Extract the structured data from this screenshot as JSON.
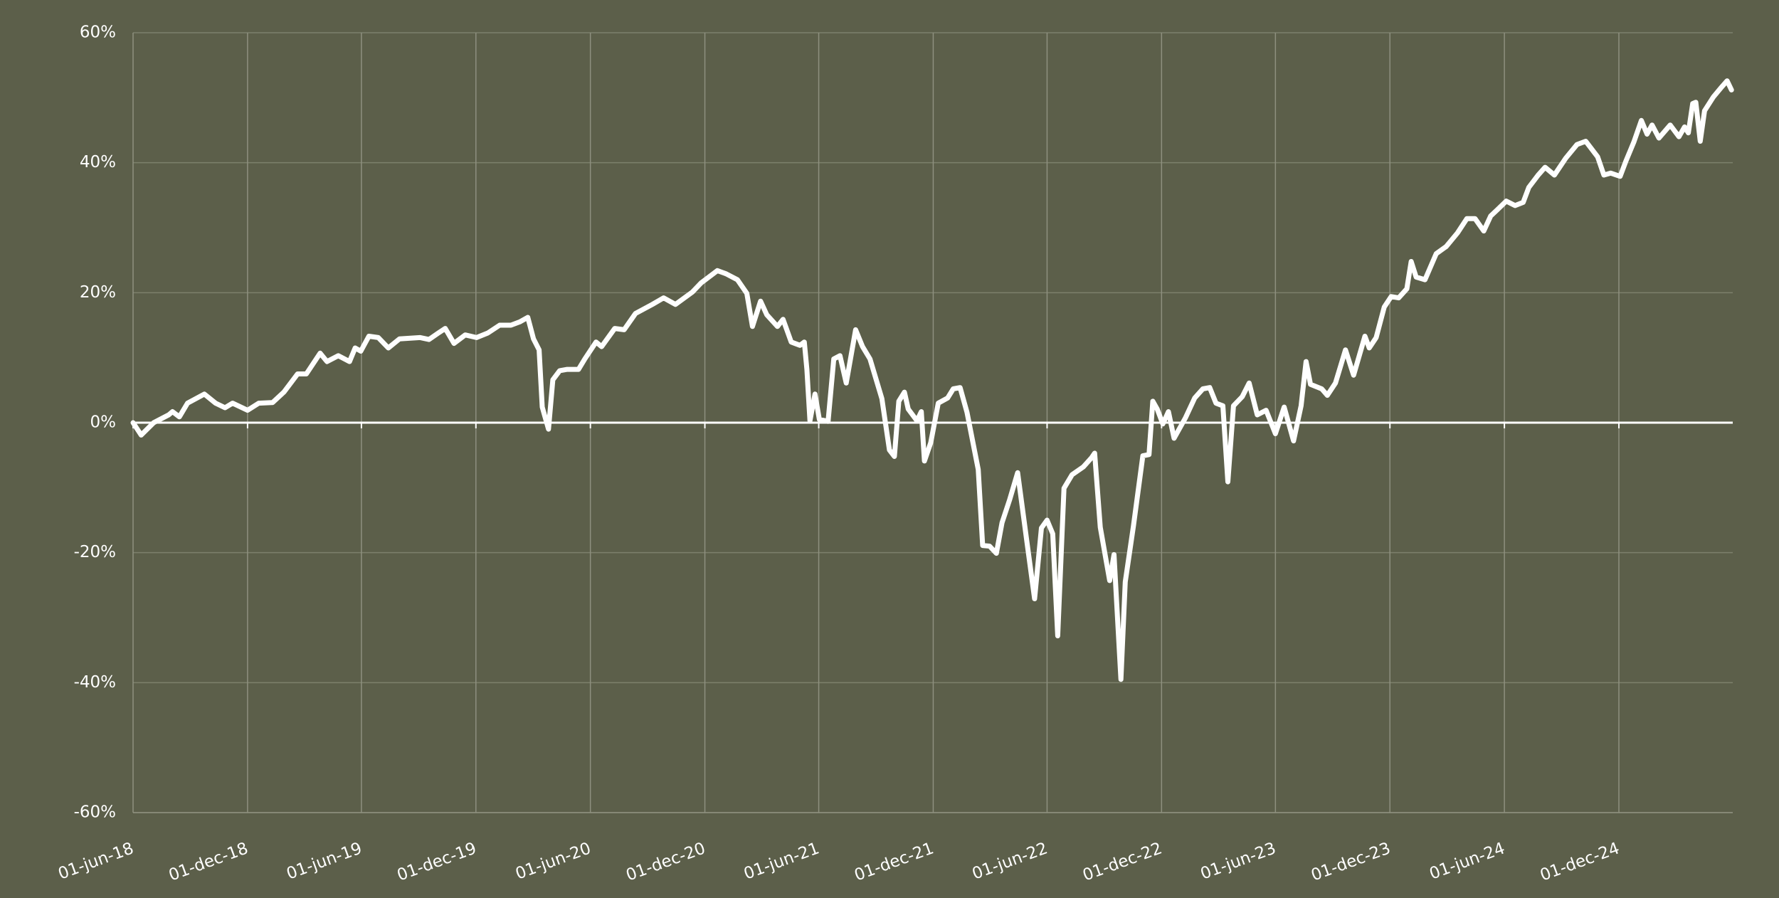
{
  "chart_data": {
    "type": "line",
    "color": "#ffffff",
    "grid": true,
    "x": [
      "2018-06-01",
      "2018-06-14",
      "2018-07-04",
      "2018-07-28",
      "2018-08-03",
      "2018-08-14",
      "2018-08-27",
      "2018-09-23",
      "2018-10-11",
      "2018-10-26",
      "2018-11-07",
      "2018-12-01",
      "2018-12-19",
      "2019-01-10",
      "2019-01-28",
      "2019-02-19",
      "2019-03-05",
      "2019-03-27",
      "2019-04-07",
      "2019-04-25",
      "2019-05-13",
      "2019-05-22",
      "2019-05-31",
      "2019-06-13",
      "2019-06-28",
      "2019-07-14",
      "2019-08-01",
      "2019-09-03",
      "2019-09-17",
      "2019-10-02",
      "2019-10-13",
      "2019-10-27",
      "2019-11-14",
      "2019-12-02",
      "2019-12-20",
      "2020-01-08",
      "2020-01-26",
      "2020-02-09",
      "2020-02-22",
      "2020-03-02",
      "2020-03-11",
      "2020-03-16",
      "2020-03-26",
      "2020-04-02",
      "2020-04-13",
      "2020-04-25",
      "2020-05-13",
      "2020-05-23",
      "2020-06-10",
      "2020-06-19",
      "2020-07-10",
      "2020-07-25",
      "2020-08-12",
      "2020-09-08",
      "2020-09-26",
      "2020-10-15",
      "2020-11-11",
      "2020-11-25",
      "2020-12-21",
      "2021-01-04",
      "2021-01-22",
      "2021-02-06",
      "2021-02-15",
      "2021-02-28",
      "2021-03-10",
      "2021-03-27",
      "2021-04-05",
      "2021-04-18",
      "2021-05-02",
      "2021-05-09",
      "2021-05-13",
      "2021-05-18",
      "2021-05-26",
      "2021-06-02",
      "2021-06-16",
      "2021-06-25",
      "2021-07-05",
      "2021-07-15",
      "2021-07-30",
      "2021-08-10",
      "2021-08-22",
      "2021-09-10",
      "2021-09-22",
      "2021-09-30",
      "2021-10-07",
      "2021-10-16",
      "2021-10-22",
      "2021-11-05",
      "2021-11-12",
      "2021-11-17",
      "2021-11-27",
      "2021-12-09",
      "2021-12-24",
      "2022-01-02",
      "2022-01-13",
      "2022-01-24",
      "2022-02-11",
      "2022-02-18",
      "2022-03-01",
      "2022-03-12",
      "2022-03-21",
      "2022-04-02",
      "2022-04-15",
      "2022-04-30",
      "2022-05-12",
      "2022-05-23",
      "2022-06-01",
      "2022-06-10",
      "2022-06-18",
      "2022-06-28",
      "2022-07-11",
      "2022-07-29",
      "2022-08-11",
      "2022-08-16",
      "2022-08-25",
      "2022-09-09",
      "2022-09-16",
      "2022-09-27",
      "2022-10-04",
      "2022-10-17",
      "2022-11-01",
      "2022-11-11",
      "2022-11-17",
      "2022-11-24",
      "2022-12-03",
      "2022-12-12",
      "2022-12-21",
      "2023-01-08",
      "2023-01-23",
      "2023-02-05",
      "2023-02-16",
      "2023-02-26",
      "2023-03-09",
      "2023-03-17",
      "2023-03-26",
      "2023-04-09",
      "2023-04-20",
      "2023-05-03",
      "2023-05-17",
      "2023-06-01",
      "2023-06-15",
      "2023-06-30",
      "2023-07-12",
      "2023-07-20",
      "2023-07-27",
      "2023-08-14",
      "2023-08-23",
      "2023-09-05",
      "2023-09-21",
      "2023-10-04",
      "2023-10-22",
      "2023-10-29",
      "2023-11-09",
      "2023-11-22",
      "2023-12-03",
      "2023-12-15",
      "2023-12-28",
      "2024-01-04",
      "2024-01-12",
      "2024-01-26",
      "2024-02-13",
      "2024-02-29",
      "2024-03-18",
      "2024-04-02",
      "2024-04-15",
      "2024-04-29",
      "2024-05-10",
      "2024-05-20",
      "2024-06-04",
      "2024-06-18",
      "2024-07-01",
      "2024-07-10",
      "2024-07-25",
      "2024-08-05",
      "2024-08-20",
      "2024-09-07",
      "2024-09-25",
      "2024-10-09",
      "2024-10-28",
      "2024-11-07",
      "2024-11-18",
      "2024-12-03",
      "2024-12-12",
      "2024-12-25",
      "2025-01-06",
      "2025-01-15",
      "2025-01-23",
      "2025-02-03",
      "2025-02-21",
      "2025-03-07",
      "2025-03-16",
      "2025-03-22",
      "2025-03-29",
      "2025-04-03",
      "2025-04-10",
      "2025-04-17",
      "2025-05-01",
      "2025-05-13",
      "2025-05-23",
      "2025-05-30"
    ],
    "values": [
      0,
      -1.9,
      0,
      1.2,
      1.7,
      0.9,
      3.0,
      4.4,
      3.0,
      2.3,
      3.0,
      1.9,
      3.0,
      3.1,
      4.7,
      7.5,
      7.5,
      10.7,
      9.4,
      10.3,
      9.4,
      11.5,
      11.0,
      13.3,
      13.1,
      11.5,
      12.9,
      13.1,
      12.8,
      13.8,
      14.5,
      12.2,
      13.5,
      13.1,
      13.8,
      15.0,
      15.0,
      15.5,
      16.2,
      12.9,
      11.2,
      2.4,
      -1.0,
      6.6,
      8.0,
      8.2,
      8.2,
      9.8,
      12.4,
      11.7,
      14.5,
      14.3,
      16.8,
      18.2,
      19.2,
      18.2,
      20.1,
      21.5,
      23.4,
      22.9,
      22.0,
      19.9,
      14.8,
      18.7,
      16.6,
      14.8,
      15.9,
      12.4,
      11.9,
      12.4,
      8.2,
      0.3,
      4.4,
      0.5,
      0.2,
      9.8,
      10.3,
      6.1,
      14.3,
      11.7,
      9.8,
      3.7,
      -4.2,
      -5.2,
      3.3,
      4.7,
      2.1,
      0.3,
      1.7,
      -5.9,
      -3.1,
      3.0,
      3.8,
      5.2,
      5.4,
      1.6,
      -7.2,
      -18.9,
      -19.0,
      -20.1,
      -15.4,
      -11.9,
      -7.7,
      -18.5,
      -27.1,
      -16.2,
      -15.0,
      -17.1,
      -32.8,
      -10.1,
      -8.0,
      -6.8,
      -5.4,
      -4.7,
      -16.1,
      -24.3,
      -20.3,
      -39.5,
      -24.5,
      -15.9,
      -5.1,
      -4.9,
      3.3,
      2.1,
      -0.2,
      1.7,
      -2.4,
      0.7,
      3.8,
      5.2,
      5.4,
      3.0,
      2.6,
      -9.1,
      2.6,
      4.0,
      6.1,
      1.2,
      1.9,
      -1.7,
      2.4,
      -2.8,
      2.6,
      9.4,
      5.9,
      5.2,
      4.2,
      6.1,
      11.2,
      7.3,
      13.3,
      11.5,
      13.1,
      17.8,
      19.4,
      19.2,
      20.6,
      24.8,
      22.4,
      22.0,
      26.0,
      27.1,
      29.2,
      31.4,
      31.4,
      29.5,
      31.8,
      32.7,
      34.1,
      33.4,
      33.9,
      36.2,
      38.1,
      39.3,
      38.1,
      40.7,
      42.8,
      43.3,
      40.9,
      38.1,
      38.4,
      37.9,
      40.2,
      43.2,
      46.5,
      44.4,
      45.8,
      43.8,
      45.8,
      44.0,
      45.5,
      44.6,
      49.1,
      49.3,
      43.3,
      48.0,
      50.1,
      51.5,
      52.6,
      51.2
    ],
    "xlim": [
      "2018-06-01",
      "2025-06-01"
    ],
    "xticks": [
      {
        "value": "2018-06-01",
        "label": "01-jun-18"
      },
      {
        "value": "2018-12-01",
        "label": "01-dec-18"
      },
      {
        "value": "2019-06-01",
        "label": "01-jun-19"
      },
      {
        "value": "2019-12-01",
        "label": "01-dec-19"
      },
      {
        "value": "2020-06-01",
        "label": "01-jun-20"
      },
      {
        "value": "2020-12-01",
        "label": "01-dec-20"
      },
      {
        "value": "2021-06-01",
        "label": "01-jun-21"
      },
      {
        "value": "2021-12-01",
        "label": "01-dec-21"
      },
      {
        "value": "2022-06-01",
        "label": "01-jun-22"
      },
      {
        "value": "2022-12-01",
        "label": "01-dec-22"
      },
      {
        "value": "2023-06-01",
        "label": "01-jun-23"
      },
      {
        "value": "2023-12-01",
        "label": "01-dec-23"
      },
      {
        "value": "2024-06-01",
        "label": "01-jun-24"
      },
      {
        "value": "2024-12-01",
        "label": "01-dec-24"
      }
    ],
    "ylim": [
      -60,
      60
    ],
    "yticks": [
      {
        "value": -60,
        "label": "-60%"
      },
      {
        "value": -40,
        "label": "-40%"
      },
      {
        "value": -20,
        "label": "-20%"
      },
      {
        "value": 0,
        "label": "0%"
      },
      {
        "value": 20,
        "label": "20%"
      },
      {
        "value": 40,
        "label": "40%"
      },
      {
        "value": 60,
        "label": "60%"
      }
    ]
  }
}
